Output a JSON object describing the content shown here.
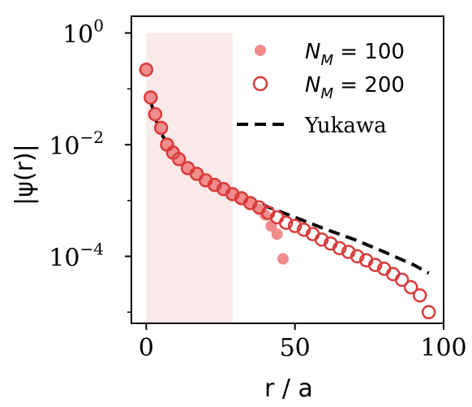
{
  "chart_data": {
    "type": "scatter",
    "xlabel": "r / a",
    "ylabel": "|ψ(r)|",
    "xlim": [
      -5,
      100
    ],
    "ylim_log10": [
      -5.2,
      0.3
    ],
    "y_scale": "log",
    "x_ticks": [
      "0",
      "50",
      "100"
    ],
    "x_tick_values": [
      0,
      50,
      100
    ],
    "y_ticks": [
      {
        "base": "10",
        "exp": "0",
        "value": 1
      },
      {
        "base": "10",
        "exp": "−2",
        "value": 0.01
      },
      {
        "base": "10",
        "exp": "−4",
        "value": 0.0001
      }
    ],
    "shaded_region": {
      "x_from": 0,
      "x_to": 29,
      "color": "#f7dada"
    },
    "legend_position": "top-right",
    "series": [
      {
        "name": "N_M = 100",
        "label_main": "N",
        "label_sub": "M",
        "label_rest": " = 100",
        "style": "filled-circle",
        "color": "#f08c8c",
        "x": [
          0,
          1.5,
          3,
          5,
          7,
          9,
          11,
          14,
          17,
          20,
          23,
          26,
          29,
          32,
          35,
          38,
          40,
          42,
          44,
          46
        ],
        "y": [
          0.22,
          0.07,
          0.035,
          0.02,
          0.01,
          0.0072,
          0.0055,
          0.0038,
          0.003,
          0.0023,
          0.0019,
          0.0016,
          0.0013,
          0.0011,
          0.0009,
          0.0007,
          0.00055,
          0.00035,
          0.00025,
          9e-05
        ]
      },
      {
        "name": "N_M = 200",
        "label_main": "N",
        "label_sub": "M",
        "label_rest": " = 200",
        "style": "open-circle",
        "color": "#d93a3a",
        "x": [
          0,
          1.5,
          3,
          5,
          7,
          9,
          11,
          14,
          17,
          20,
          23,
          26,
          29,
          32,
          35,
          38,
          41,
          44,
          47,
          50,
          53,
          56,
          59,
          62,
          65,
          68,
          71,
          74,
          77,
          80,
          83,
          86,
          89,
          92,
          95
        ],
        "y": [
          0.22,
          0.07,
          0.035,
          0.02,
          0.01,
          0.0072,
          0.0055,
          0.0038,
          0.003,
          0.0023,
          0.0019,
          0.0016,
          0.0013,
          0.0011,
          0.0009,
          0.00075,
          0.0006,
          0.0005,
          0.0004,
          0.00035,
          0.0003,
          0.00025,
          0.0002,
          0.00017,
          0.00014,
          0.00012,
          0.0001,
          8.5e-05,
          7e-05,
          6e-05,
          4.8e-05,
          3.8e-05,
          2.8e-05,
          2e-05,
          1e-05
        ]
      },
      {
        "name": "Yukawa",
        "style": "dashed-line",
        "color": "#000000",
        "x": [
          1.5,
          3,
          5,
          8,
          12,
          16,
          20,
          25,
          30,
          35,
          40,
          50,
          60,
          70,
          80,
          90,
          95
        ],
        "y": [
          0.06,
          0.03,
          0.016,
          0.0085,
          0.005,
          0.0034,
          0.0025,
          0.0018,
          0.0013,
          0.001,
          0.0008,
          0.0005,
          0.00031,
          0.0002,
          0.00012,
          7e-05,
          5e-05
        ]
      }
    ]
  }
}
